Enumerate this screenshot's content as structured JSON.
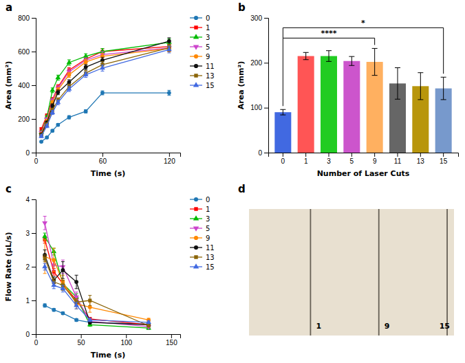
{
  "chart_data": [
    {
      "type": "line",
      "title": "a",
      "xlabel": "Time (s)",
      "ylabel": "Area (mm²)",
      "xlim": [
        0,
        130
      ],
      "ylim": [
        0,
        800
      ],
      "xticks": [
        0,
        60,
        120
      ],
      "yticks": [
        0,
        200,
        400,
        600,
        800
      ],
      "legend": "right",
      "x": [
        5,
        10,
        15,
        20,
        30,
        45,
        60,
        120
      ],
      "series": [
        {
          "name": "0",
          "color": "#1F77B4",
          "marker": "circle",
          "values": [
            65,
            90,
            130,
            165,
            210,
            245,
            355,
            355
          ],
          "errors": [
            4,
            5,
            7,
            8,
            10,
            10,
            12,
            15
          ]
        },
        {
          "name": "1",
          "color": "#FF0000",
          "marker": "square",
          "values": [
            140,
            220,
            315,
            390,
            490,
            555,
            600,
            630
          ],
          "errors": [
            8,
            10,
            12,
            14,
            15,
            15,
            18,
            20
          ]
        },
        {
          "name": "3",
          "color": "#00BB00",
          "marker": "triangle-up",
          "values": [
            120,
            210,
            370,
            445,
            535,
            572,
            600,
            655
          ],
          "errors": [
            8,
            10,
            14,
            15,
            16,
            15,
            18,
            20
          ]
        },
        {
          "name": "5",
          "color": "#CC44CC",
          "marker": "triangle-down",
          "values": [
            118,
            198,
            308,
            382,
            480,
            548,
            582,
            622
          ],
          "errors": [
            8,
            10,
            12,
            14,
            15,
            15,
            18,
            20
          ]
        },
        {
          "name": "9",
          "color": "#FF8800",
          "marker": "circle",
          "values": [
            112,
            188,
            298,
            372,
            462,
            538,
            572,
            618
          ],
          "errors": [
            8,
            10,
            12,
            14,
            15,
            15,
            18,
            20
          ]
        },
        {
          "name": "11",
          "color": "#111111",
          "marker": "circle",
          "values": [
            108,
            178,
            278,
            358,
            418,
            508,
            548,
            662
          ],
          "errors": [
            8,
            10,
            12,
            14,
            15,
            15,
            18,
            20
          ]
        },
        {
          "name": "13",
          "color": "#8B6508",
          "marker": "square",
          "values": [
            102,
            168,
            252,
            312,
            392,
            472,
            522,
            622
          ],
          "errors": [
            8,
            10,
            12,
            14,
            15,
            15,
            18,
            20
          ]
        },
        {
          "name": "15",
          "color": "#4169E1",
          "marker": "triangle-up",
          "values": [
            97,
            158,
            238,
            298,
            378,
            462,
            502,
            612
          ],
          "errors": [
            8,
            10,
            12,
            14,
            15,
            15,
            18,
            20
          ]
        }
      ]
    },
    {
      "type": "bar",
      "title": "b",
      "xlabel": "Number of Laser Cuts",
      "ylabel": "Area (mm²)",
      "ylim": [
        0,
        300
      ],
      "yticks": [
        0,
        100,
        200,
        300
      ],
      "categories": [
        "0",
        "1",
        "3",
        "5",
        "9",
        "11",
        "13",
        "15"
      ],
      "values": [
        90,
        215,
        215,
        204,
        202,
        154,
        148,
        143
      ],
      "errors": [
        6,
        8,
        12,
        10,
        30,
        35,
        30,
        25
      ],
      "colors": [
        "#4169E1",
        "#FF5555",
        "#22CC22",
        "#CC55CC",
        "#FFB060",
        "#666666",
        "#B8960C",
        "#7799CC"
      ],
      "annotations": [
        {
          "text": "****",
          "from": "0",
          "to": "9",
          "y": 255
        },
        {
          "text": "*",
          "from": "0",
          "to": "15",
          "y": 278
        }
      ]
    },
    {
      "type": "line",
      "title": "c",
      "xlabel": "Time (s)",
      "ylabel": "Flow Rate (μL/s)",
      "xlim": [
        0,
        160
      ],
      "ylim": [
        0,
        4
      ],
      "xticks": [
        0,
        50,
        100,
        150
      ],
      "yticks": [
        0,
        1,
        2,
        3,
        4
      ],
      "legend": "right",
      "x": [
        10,
        20,
        30,
        45,
        60,
        125
      ],
      "series": [
        {
          "name": "0",
          "color": "#1F77B4",
          "marker": "circle",
          "values": [
            0.85,
            0.72,
            0.62,
            0.42,
            0.35,
            0.3
          ],
          "errors": [
            0.05,
            0.04,
            0.04,
            0.04,
            0.03,
            0.03
          ]
        },
        {
          "name": "1",
          "color": "#FF0000",
          "marker": "square",
          "values": [
            2.8,
            1.85,
            1.5,
            1.0,
            0.45,
            0.28
          ],
          "errors": [
            0.1,
            0.1,
            0.1,
            0.1,
            0.05,
            0.04
          ]
        },
        {
          "name": "3",
          "color": "#00BB00",
          "marker": "triangle-up",
          "values": [
            2.9,
            2.45,
            1.5,
            1.1,
            0.28,
            0.18
          ],
          "errors": [
            0.1,
            0.1,
            0.1,
            0.1,
            0.05,
            0.04
          ]
        },
        {
          "name": "5",
          "color": "#CC44CC",
          "marker": "triangle-down",
          "values": [
            3.3,
            2.05,
            2.0,
            1.1,
            0.38,
            0.22
          ],
          "errors": [
            0.2,
            0.15,
            0.2,
            0.15,
            0.05,
            0.04
          ]
        },
        {
          "name": "9",
          "color": "#FF8800",
          "marker": "circle",
          "values": [
            2.3,
            2.2,
            1.55,
            0.9,
            0.8,
            0.42
          ],
          "errors": [
            0.5,
            0.35,
            0.2,
            0.15,
            0.15,
            0.05
          ]
        },
        {
          "name": "11",
          "color": "#111111",
          "marker": "circle",
          "values": [
            2.35,
            1.6,
            1.9,
            1.55,
            0.35,
            0.28
          ],
          "errors": [
            0.15,
            0.1,
            0.25,
            0.2,
            0.05,
            0.04
          ]
        },
        {
          "name": "13",
          "color": "#8B6508",
          "marker": "square",
          "values": [
            2.25,
            1.55,
            1.45,
            0.95,
            1.0,
            0.25
          ],
          "errors": [
            0.1,
            0.1,
            0.15,
            0.1,
            0.15,
            0.04
          ]
        },
        {
          "name": "15",
          "color": "#4169E1",
          "marker": "triangle-up",
          "values": [
            2.0,
            1.45,
            1.35,
            0.85,
            0.42,
            0.35
          ],
          "errors": [
            0.1,
            0.1,
            0.1,
            0.1,
            0.05,
            0.04
          ]
        }
      ]
    },
    {
      "type": "image",
      "title": "d",
      "color": "#666055",
      "annotations": [
        "1",
        "9",
        "15"
      ]
    }
  ]
}
